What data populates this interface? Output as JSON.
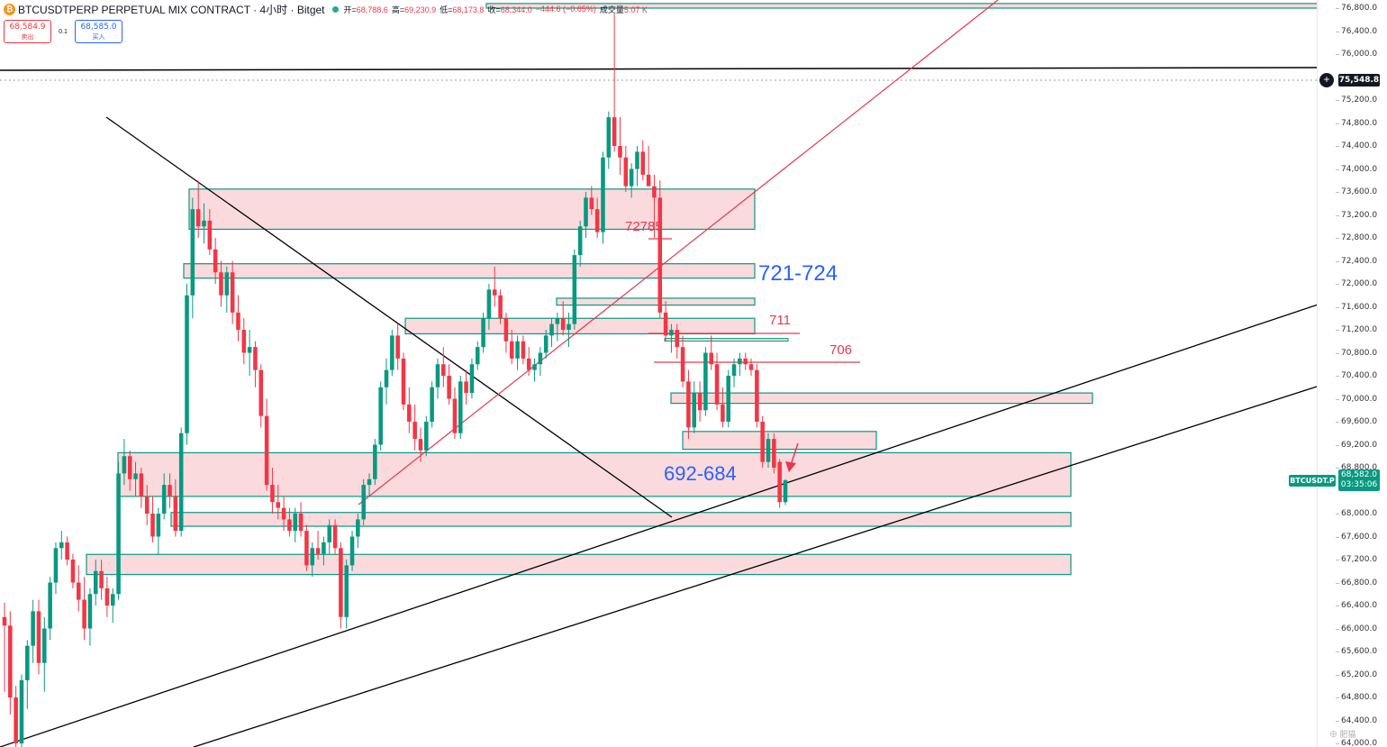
{
  "header": {
    "title": "BTCUSDTPERP PERPETUAL MIX CONTRACT · 4小时 · Bitget",
    "coin_glyph": "₿",
    "ohlc": [
      {
        "label": "开=",
        "value": "68,788.6"
      },
      {
        "label": "高=",
        "value": "69,230.9"
      },
      {
        "label": "低=",
        "value": "68,173.8"
      },
      {
        "label": "收=",
        "value": "68,344.0"
      },
      {
        "label": "",
        "value": "−444.6 (−0.65%)"
      },
      {
        "label": "成交量",
        "value": "5.07 K"
      }
    ]
  },
  "trade": {
    "sell_price": "68,584.9",
    "sell_label": "卖出",
    "spread": "0.1",
    "buy_price": "68,585.0",
    "buy_label": "买入"
  },
  "axis": {
    "ticks": [
      "76,800.0",
      "76,400.0",
      "76,000.0",
      "75,200.0",
      "74,800.0",
      "74,400.0",
      "74,000.0",
      "73,600.0",
      "73,200.0",
      "72,800.0",
      "72,400.0",
      "72,000.0",
      "71,600.0",
      "71,200.0",
      "70,800.0",
      "70,400.0",
      "70,000.0",
      "69,600.0",
      "69,200.0",
      "68,800.0",
      "68,000.0",
      "67,600.0",
      "67,200.0",
      "66,800.0",
      "66,400.0",
      "66,000.0",
      "65,600.0",
      "65,200.0",
      "64,800.0",
      "64,400.0",
      "64,000.0"
    ],
    "highlight_price": "75,548.8",
    "last_price": "68,582.0",
    "countdown": "03:35:06",
    "symbol_tag": "BTCUSDT.P"
  },
  "annotations": {
    "zone_721": "721-724",
    "zone_692": "692-684",
    "level_72785": "72785",
    "level_711": "711",
    "level_706": "706"
  },
  "watermark": "⊕ 肥猫",
  "colors": {
    "up": "#089981",
    "down": "#f23645",
    "zone_fill": "#fadadd",
    "zone_border": "#089981",
    "annot_blue": "#2962ff",
    "annot_red": "#e53950"
  },
  "chart_data": {
    "type": "candlestick",
    "symbol": "BTCUSDTPERP",
    "ylim": [
      64000,
      76900
    ],
    "candles": [
      [
        66200,
        66450,
        64900,
        66050
      ],
      [
        66050,
        66300,
        64500,
        64800
      ],
      [
        64800,
        65000,
        63800,
        64000
      ],
      [
        64000,
        65200,
        63700,
        65100
      ],
      [
        65100,
        65800,
        64600,
        65700
      ],
      [
        65700,
        66500,
        65400,
        66300
      ],
      [
        66300,
        66500,
        65200,
        65400
      ],
      [
        65400,
        66200,
        64900,
        66000
      ],
      [
        66000,
        66900,
        65800,
        66800
      ],
      [
        66800,
        67500,
        66600,
        67400
      ],
      [
        67400,
        67700,
        67200,
        67500
      ],
      [
        67500,
        67600,
        67100,
        67200
      ],
      [
        67200,
        67300,
        66700,
        66800
      ],
      [
        66800,
        67100,
        66300,
        66500
      ],
      [
        66500,
        66900,
        65800,
        66000
      ],
      [
        66000,
        66700,
        65700,
        66600
      ],
      [
        66600,
        67200,
        66400,
        67000
      ],
      [
        67000,
        67200,
        66500,
        66700
      ],
      [
        66700,
        66900,
        66200,
        66400
      ],
      [
        66400,
        66700,
        66100,
        66600
      ],
      [
        66600,
        68900,
        66500,
        68700
      ],
      [
        68700,
        69300,
        68500,
        69000
      ],
      [
        69000,
        69100,
        68400,
        68600
      ],
      [
        68600,
        68900,
        68300,
        68700
      ],
      [
        68700,
        68800,
        68100,
        68300
      ],
      [
        68300,
        68500,
        67800,
        68000
      ],
      [
        68000,
        68300,
        67500,
        67600
      ],
      [
        67600,
        68100,
        67300,
        68000
      ],
      [
        68000,
        68700,
        67900,
        68500
      ],
      [
        68500,
        68700,
        68100,
        68300
      ],
      [
        68300,
        68600,
        67600,
        67700
      ],
      [
        67700,
        69500,
        67600,
        69400
      ],
      [
        69400,
        72000,
        69200,
        71800
      ],
      [
        71800,
        73500,
        71400,
        73300
      ],
      [
        73300,
        73800,
        72800,
        73000
      ],
      [
        73000,
        73400,
        72700,
        73100
      ],
      [
        73100,
        73300,
        72500,
        72600
      ],
      [
        72600,
        72800,
        72000,
        72200
      ],
      [
        72200,
        72400,
        71600,
        71800
      ],
      [
        71800,
        72300,
        71500,
        72200
      ],
      [
        72200,
        72400,
        71300,
        71500
      ],
      [
        71500,
        71800,
        71000,
        71200
      ],
      [
        71200,
        71400,
        70600,
        70800
      ],
      [
        70800,
        71200,
        70400,
        70900
      ],
      [
        70900,
        71000,
        70200,
        70500
      ],
      [
        70500,
        70600,
        69500,
        69700
      ],
      [
        69700,
        70000,
        68400,
        68500
      ],
      [
        68500,
        68800,
        68000,
        68200
      ],
      [
        68200,
        68500,
        67900,
        68100
      ],
      [
        68100,
        68300,
        67700,
        67900
      ],
      [
        67900,
        68100,
        67600,
        67700
      ],
      [
        67700,
        68100,
        67500,
        68000
      ],
      [
        68000,
        68200,
        67600,
        67700
      ],
      [
        67700,
        67800,
        67000,
        67100
      ],
      [
        67100,
        67500,
        66900,
        67400
      ],
      [
        67400,
        67700,
        67200,
        67300
      ],
      [
        67300,
        67600,
        67100,
        67500
      ],
      [
        67500,
        67900,
        67300,
        67800
      ],
      [
        67800,
        67900,
        67300,
        67400
      ],
      [
        67400,
        67500,
        66000,
        66200
      ],
      [
        66200,
        67200,
        66000,
        67100
      ],
      [
        67100,
        67700,
        67000,
        67600
      ],
      [
        67600,
        68000,
        67400,
        67900
      ],
      [
        67900,
        68600,
        67800,
        68500
      ],
      [
        68500,
        68700,
        68300,
        68600
      ],
      [
        68600,
        69300,
        68500,
        69200
      ],
      [
        69200,
        70300,
        69100,
        70200
      ],
      [
        70200,
        70700,
        69900,
        70500
      ],
      [
        70500,
        71200,
        70400,
        71100
      ],
      [
        71100,
        71300,
        70500,
        70700
      ],
      [
        70700,
        70800,
        69800,
        69900
      ],
      [
        69900,
        70200,
        69400,
        69600
      ],
      [
        69600,
        69900,
        69100,
        69300
      ],
      [
        69300,
        69500,
        68900,
        69100
      ],
      [
        69100,
        69700,
        69000,
        69600
      ],
      [
        69600,
        70300,
        69500,
        70200
      ],
      [
        70200,
        70700,
        70000,
        70600
      ],
      [
        70600,
        70900,
        70200,
        70400
      ],
      [
        70400,
        70600,
        69900,
        70000
      ],
      [
        70000,
        70200,
        69300,
        69400
      ],
      [
        69400,
        70400,
        69300,
        70300
      ],
      [
        70300,
        70500,
        69900,
        70100
      ],
      [
        70100,
        70700,
        70000,
        70600
      ],
      [
        70600,
        71000,
        70500,
        70900
      ],
      [
        70900,
        71500,
        70800,
        71400
      ],
      [
        71400,
        72000,
        71200,
        71900
      ],
      [
        71900,
        72300,
        71600,
        71800
      ],
      [
        71800,
        71900,
        71300,
        71400
      ],
      [
        71400,
        71500,
        70800,
        71000
      ],
      [
        71000,
        71200,
        70600,
        70700
      ],
      [
        70700,
        71100,
        70500,
        71000
      ],
      [
        71000,
        71100,
        70600,
        70700
      ],
      [
        70700,
        70900,
        70400,
        70500
      ],
      [
        70500,
        70700,
        70300,
        70600
      ],
      [
        70600,
        70900,
        70400,
        70800
      ],
      [
        70800,
        71200,
        70700,
        71100
      ],
      [
        71100,
        71400,
        70900,
        71300
      ],
      [
        71300,
        71500,
        71000,
        71400
      ],
      [
        71400,
        71700,
        71100,
        71200
      ],
      [
        71200,
        71500,
        70900,
        71300
      ],
      [
        71300,
        72600,
        71200,
        72500
      ],
      [
        72500,
        73100,
        72300,
        73000
      ],
      [
        73000,
        73600,
        72800,
        73500
      ],
      [
        73500,
        73700,
        73200,
        73300
      ],
      [
        73300,
        73500,
        72800,
        72900
      ],
      [
        72900,
        74300,
        72700,
        74200
      ],
      [
        74200,
        75000,
        74000,
        74900
      ],
      [
        74900,
        76700,
        74300,
        74400
      ],
      [
        74400,
        74900,
        73900,
        74200
      ],
      [
        74200,
        74400,
        73600,
        73700
      ],
      [
        73700,
        74100,
        73500,
        74000
      ],
      [
        74000,
        74400,
        73700,
        74300
      ],
      [
        74300,
        74500,
        73800,
        73900
      ],
      [
        73900,
        74400,
        73700,
        73700
      ],
      [
        73700,
        73900,
        72800,
        73500
      ],
      [
        73500,
        73800,
        71400,
        71500
      ],
      [
        71500,
        71700,
        71000,
        71100
      ],
      [
        71100,
        71300,
        70800,
        71200
      ],
      [
        71200,
        71300,
        70700,
        70900
      ],
      [
        70900,
        71100,
        70200,
        70300
      ],
      [
        70300,
        70500,
        69300,
        69500
      ],
      [
        69500,
        70300,
        69400,
        70100
      ],
      [
        70100,
        70300,
        69600,
        69800
      ],
      [
        69800,
        70900,
        69700,
        70800
      ],
      [
        70800,
        71100,
        70500,
        70600
      ],
      [
        70600,
        70800,
        69800,
        69900
      ],
      [
        69900,
        70200,
        69500,
        69600
      ],
      [
        69600,
        70500,
        69500,
        70400
      ],
      [
        70400,
        70700,
        70200,
        70600
      ],
      [
        70600,
        70800,
        70400,
        70700
      ],
      [
        70700,
        70800,
        70500,
        70600
      ],
      [
        70600,
        70700,
        70400,
        70500
      ],
      [
        70500,
        70600,
        69500,
        69600
      ],
      [
        69600,
        69700,
        68800,
        68900
      ],
      [
        68900,
        69400,
        68800,
        69300
      ],
      [
        69300,
        69400,
        68700,
        68800
      ],
      [
        68900,
        68950,
        68100,
        68200
      ],
      [
        68200,
        68600,
        68150,
        68580
      ]
    ]
  }
}
